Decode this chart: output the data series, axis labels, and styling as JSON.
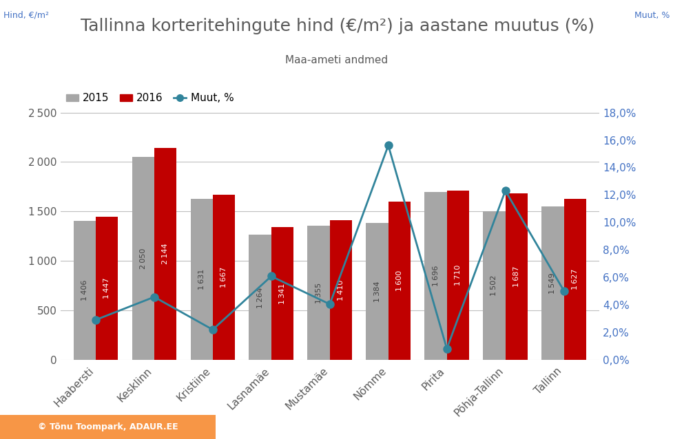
{
  "title": "Tallinna korteritehingute hind (€/m²) ja aastane muutus (%)",
  "subtitle": "Maa-ameti andmed",
  "ylabel_left": "Hind, €/m²",
  "ylabel_right": "Muut, %",
  "categories": [
    "Haabersti",
    "Kesklinn",
    "Kristiine",
    "Lasnamäe",
    "Mustamäe",
    "Nõmme",
    "Pirita",
    "Põhja-Tallinn",
    "Tallinn"
  ],
  "values_2015": [
    1406,
    2050,
    1631,
    1264,
    1355,
    1384,
    1696,
    1502,
    1549
  ],
  "values_2016": [
    1447,
    2144,
    1667,
    1341,
    1410,
    1600,
    1710,
    1687,
    1627
  ],
  "change_pct": [
    2.916,
    4.585,
    2.208,
    6.091,
    4.059,
    15.607,
    0.825,
    12.317,
    5.036
  ],
  "bar_color_2015": "#a6a6a6",
  "bar_color_2016": "#c00000",
  "line_color": "#31849b",
  "marker_color": "#31849b",
  "bar_width": 0.38,
  "ylim_left": [
    0,
    2750
  ],
  "ylim_right": [
    0,
    0.198
  ],
  "yticks_left": [
    0,
    500,
    1000,
    1500,
    2000,
    2500
  ],
  "yticks_right": [
    0.0,
    0.02,
    0.04,
    0.06,
    0.08,
    0.1,
    0.12,
    0.14,
    0.16,
    0.18
  ],
  "title_fontsize": 18,
  "subtitle_fontsize": 11,
  "label_fontsize": 9,
  "tick_fontsize": 11,
  "bar_label_fontsize": 8,
  "legend_fontsize": 11,
  "background_color": "#ffffff",
  "grid_color": "#bfbfbf",
  "title_color": "#595959",
  "axis_label_color": "#4472c4",
  "tick_label_color": "#595959",
  "right_tick_color": "#4472c4",
  "copyright_bg": "#f79646",
  "copyright_text": "© Tõnu Toompark, ADAUR.EE"
}
